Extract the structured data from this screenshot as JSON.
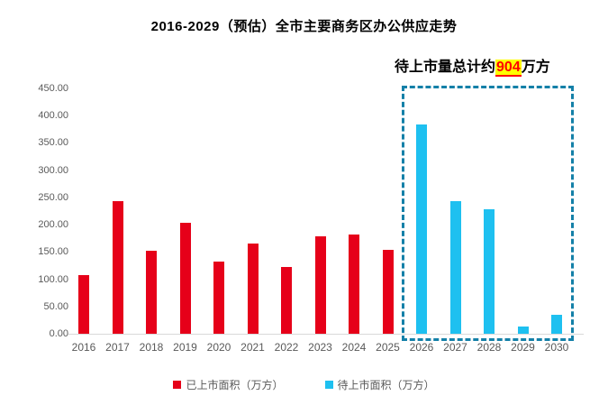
{
  "title": "2016-2029（预估）全市主要商务区办公供应走势",
  "annotation": {
    "prefix": "待上市量总计约",
    "highlight": "904",
    "suffix": "万方"
  },
  "colors": {
    "listed": "#e60019",
    "pending": "#1ec0f0",
    "dashed_box": "#1480a8",
    "axis_line": "#d9d9d9",
    "tick_text": "#595959",
    "highlight_bg": "#ffff00",
    "highlight_text": "#ff0000"
  },
  "legend": {
    "items": [
      {
        "label": "已上市面积（万方）",
        "color_key": "listed"
      },
      {
        "label": "待上市面积（万方）",
        "color_key": "pending"
      }
    ]
  },
  "chart_data": {
    "type": "bar",
    "title": "2016-2029（预估）全市主要商务区办公供应走势",
    "xlabel": "",
    "ylabel": "",
    "categories": [
      "2016",
      "2017",
      "2018",
      "2019",
      "2020",
      "2021",
      "2022",
      "2023",
      "2024",
      "2025",
      "2026",
      "2027",
      "2028",
      "2029",
      "2030"
    ],
    "series": [
      {
        "name": "已上市面积（万方）",
        "color_key": "listed",
        "values": [
          108,
          243,
          153,
          204,
          133,
          166,
          122,
          178,
          182,
          154,
          null,
          null,
          null,
          null,
          null
        ]
      },
      {
        "name": "待上市面积（万方）",
        "color_key": "pending",
        "values": [
          null,
          null,
          null,
          null,
          null,
          null,
          null,
          null,
          null,
          null,
          383,
          244,
          228,
          14,
          35
        ]
      }
    ],
    "ylim": [
      0,
      450
    ],
    "ytick_step": 50,
    "ytick_decimals": 2,
    "grid": false,
    "legend_position": "bottom",
    "highlight_region": {
      "from_category": "2026",
      "to_category": "2030",
      "note": "待上市量总计约904万方"
    }
  }
}
